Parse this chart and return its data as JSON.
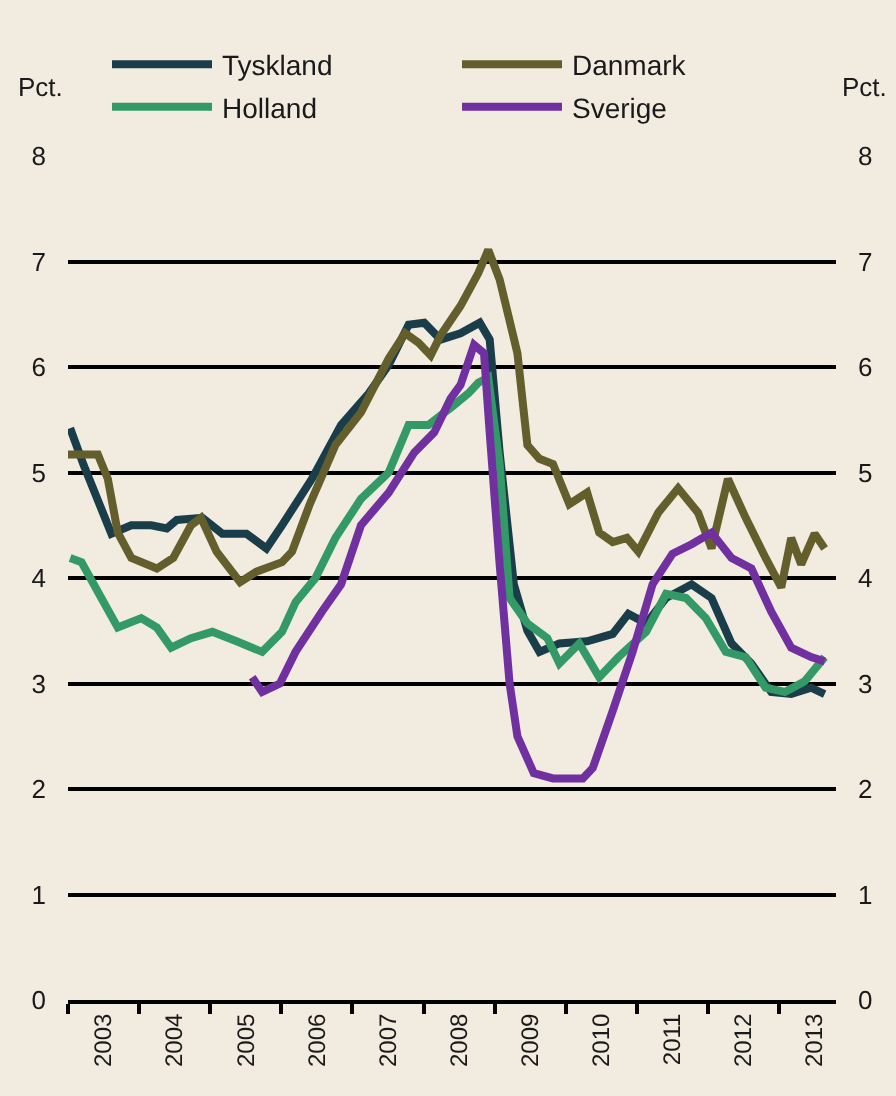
{
  "chart_data": {
    "type": "line",
    "ylabel": "Pct.",
    "y2label": "Pct.",
    "xlim": [
      2003,
      2013.8
    ],
    "xticks": [
      {
        "value": 2003.5,
        "label": "2003"
      },
      {
        "value": 2004.5,
        "label": "2004"
      },
      {
        "value": 2005.5,
        "label": "2005"
      },
      {
        "value": 2006.5,
        "label": "2006"
      },
      {
        "value": 2007.5,
        "label": "2007"
      },
      {
        "value": 2008.5,
        "label": "2008"
      },
      {
        "value": 2009.5,
        "label": "2009"
      },
      {
        "value": 2010.5,
        "label": "2010"
      },
      {
        "value": 2011.5,
        "label": "2011"
      },
      {
        "value": 2012.5,
        "label": "2012"
      },
      {
        "value": 2013.5,
        "label": "2013"
      }
    ],
    "ylim": [
      0,
      8
    ],
    "yticks": [
      0,
      1,
      2,
      3,
      4,
      5,
      6,
      7,
      8
    ],
    "y2lim": [
      0,
      8
    ],
    "y2ticks": [
      0,
      1,
      2,
      3,
      4,
      5,
      6,
      7,
      8
    ],
    "grid": "y",
    "legend": "top",
    "marker": "none",
    "line_style": "solid",
    "series": [
      {
        "name": "Tyskland",
        "color": "#1a3d4a",
        "x": [
          2003.03,
          2003.22,
          2003.61,
          2003.89,
          2004.17,
          2004.39,
          2004.53,
          2004.89,
          2005.17,
          2005.51,
          2005.79,
          2006.01,
          2006.43,
          2006.84,
          2007.23,
          2007.51,
          2007.79,
          2008.01,
          2008.24,
          2008.52,
          2008.79,
          2008.93,
          2009.07,
          2009.27,
          2009.46,
          2009.63,
          2009.91,
          2010.3,
          2010.66,
          2010.88,
          2011.13,
          2011.41,
          2011.77,
          2012.05,
          2012.33,
          2012.61,
          2012.89,
          2013.17,
          2013.45,
          2013.64
        ],
        "values": [
          5.42,
          5.07,
          4.42,
          4.5,
          4.5,
          4.47,
          4.55,
          4.57,
          4.42,
          4.42,
          4.28,
          4.5,
          4.94,
          5.45,
          5.75,
          6.02,
          6.4,
          6.42,
          6.26,
          6.32,
          6.42,
          6.26,
          5.19,
          3.94,
          3.5,
          3.3,
          3.38,
          3.4,
          3.47,
          3.66,
          3.57,
          3.81,
          3.94,
          3.81,
          3.38,
          3.19,
          2.92,
          2.9,
          2.96,
          2.9
        ]
      },
      {
        "name": "Danmark",
        "color": "#645e2c",
        "x": [
          2003.0,
          2003.42,
          2003.56,
          2003.7,
          2003.89,
          2004.25,
          2004.48,
          2004.73,
          2004.87,
          2005.09,
          2005.42,
          2005.65,
          2006.01,
          2006.15,
          2006.4,
          2006.76,
          2007.12,
          2007.51,
          2007.74,
          2007.93,
          2008.1,
          2008.24,
          2008.52,
          2008.77,
          2008.91,
          2009.07,
          2009.32,
          2009.46,
          2009.63,
          2009.82,
          2010.05,
          2010.3,
          2010.47,
          2010.66,
          2010.86,
          2011.02,
          2011.3,
          2011.58,
          2011.86,
          2012.05,
          2012.28,
          2012.53,
          2012.81,
          2013.03,
          2013.17,
          2013.31,
          2013.5,
          2013.64
        ],
        "values": [
          5.17,
          5.17,
          4.94,
          4.43,
          4.19,
          4.09,
          4.19,
          4.5,
          4.57,
          4.25,
          3.96,
          4.06,
          4.15,
          4.25,
          4.7,
          5.26,
          5.57,
          6.08,
          6.32,
          6.23,
          6.11,
          6.3,
          6.58,
          6.89,
          7.11,
          6.83,
          6.13,
          5.26,
          5.13,
          5.08,
          4.7,
          4.81,
          4.43,
          4.34,
          4.38,
          4.25,
          4.62,
          4.85,
          4.62,
          4.28,
          4.94,
          4.57,
          4.19,
          3.91,
          4.38,
          4.13,
          4.42,
          4.28
        ]
      },
      {
        "name": "Holland",
        "color": "#339966",
        "x": [
          2003.03,
          2003.19,
          2003.42,
          2003.7,
          2004.03,
          2004.25,
          2004.45,
          2004.73,
          2005.03,
          2005.37,
          2005.73,
          2006.01,
          2006.2,
          2006.48,
          2006.76,
          2007.12,
          2007.51,
          2007.79,
          2008.07,
          2008.43,
          2008.63,
          2008.77,
          2008.91,
          2009.07,
          2009.21,
          2009.46,
          2009.74,
          2009.91,
          2010.19,
          2010.47,
          2010.74,
          2011.13,
          2011.41,
          2011.69,
          2011.97,
          2012.25,
          2012.53,
          2012.81,
          2013.08,
          2013.36,
          2013.64
        ],
        "values": [
          4.19,
          4.15,
          3.87,
          3.53,
          3.62,
          3.53,
          3.34,
          3.43,
          3.49,
          3.4,
          3.3,
          3.49,
          3.77,
          4.0,
          4.38,
          4.75,
          5.0,
          5.45,
          5.45,
          5.64,
          5.75,
          5.85,
          5.9,
          5.08,
          3.81,
          3.57,
          3.43,
          3.19,
          3.38,
          3.06,
          3.25,
          3.49,
          3.85,
          3.81,
          3.62,
          3.3,
          3.25,
          2.96,
          2.92,
          3.02,
          3.25
        ]
      },
      {
        "name": "Sverige",
        "color": "#7030a0",
        "x": [
          2005.59,
          2005.73,
          2005.98,
          2006.2,
          2006.57,
          2006.84,
          2007.12,
          2007.51,
          2007.87,
          2008.15,
          2008.38,
          2008.52,
          2008.71,
          2008.85,
          2008.93,
          2009.07,
          2009.21,
          2009.32,
          2009.55,
          2009.82,
          2010.24,
          2010.38,
          2010.66,
          2010.94,
          2011.22,
          2011.5,
          2011.77,
          2012.05,
          2012.33,
          2012.61,
          2012.89,
          2013.17,
          2013.45,
          2013.64
        ],
        "values": [
          3.06,
          2.92,
          3.0,
          3.3,
          3.68,
          3.94,
          4.5,
          4.81,
          5.19,
          5.38,
          5.7,
          5.83,
          6.21,
          6.13,
          5.38,
          4.13,
          3.0,
          2.5,
          2.15,
          2.1,
          2.1,
          2.2,
          2.74,
          3.3,
          3.94,
          4.23,
          4.32,
          4.43,
          4.19,
          4.09,
          3.68,
          3.34,
          3.25,
          3.21
        ]
      }
    ]
  }
}
